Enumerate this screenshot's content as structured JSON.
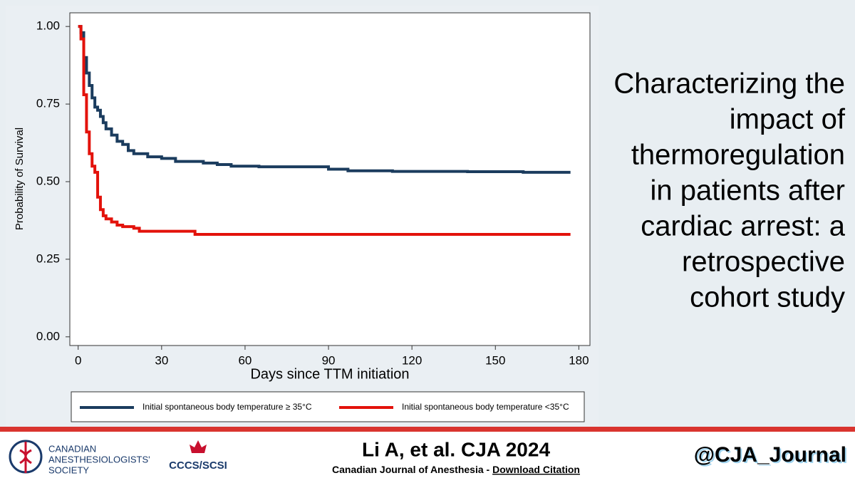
{
  "chart_data": {
    "type": "step",
    "x_label": "Days since TTM initiation",
    "y_label": "Probability of Survival",
    "xlim": [
      -3,
      184
    ],
    "ylim": [
      -0.028,
      1.044
    ],
    "xticks": [
      0,
      30,
      60,
      90,
      120,
      150,
      180
    ],
    "yticks": [
      {
        "value": 0,
        "label": "0.00"
      },
      0.25,
      {
        "value": 0.5,
        "label": "0.50"
      },
      0.75,
      {
        "value": 1,
        "label": "1.00"
      }
    ],
    "series": [
      {
        "name": "Initial spontaneous body temperature ≥ 35°C",
        "color": "#1b3c5e",
        "x": [
          0,
          1,
          2,
          3,
          4,
          5,
          6,
          7,
          8,
          9,
          10,
          12,
          14,
          16,
          18,
          20,
          25,
          30,
          35,
          45,
          50,
          55,
          65,
          90,
          97,
          113,
          140,
          160,
          177
        ],
        "values": [
          1,
          0.98,
          0.9,
          0.85,
          0.81,
          0.77,
          0.74,
          0.73,
          0.71,
          0.69,
          0.67,
          0.65,
          0.63,
          0.62,
          0.6,
          0.59,
          0.58,
          0.575,
          0.565,
          0.56,
          0.555,
          0.55,
          0.548,
          0.54,
          0.535,
          0.533,
          0.532,
          0.53,
          0.53
        ]
      },
      {
        "name": "Initial spontaneous body temperature <35°C",
        "color": "#e3120b",
        "x": [
          0,
          1,
          2,
          3,
          4,
          5,
          6,
          7,
          8,
          9,
          10,
          12,
          14,
          16,
          20,
          22,
          35,
          42,
          177
        ],
        "values": [
          1,
          0.96,
          0.78,
          0.66,
          0.59,
          0.55,
          0.53,
          0.45,
          0.41,
          0.39,
          0.38,
          0.37,
          0.36,
          0.355,
          0.35,
          0.34,
          0.34,
          0.33,
          0.33
        ]
      }
    ]
  },
  "headline": {
    "lines": [
      "Characterizing the",
      "impact of",
      "thermoregulation",
      "in patients after",
      "cardiac arrest: a",
      "retrospective",
      "cohort study"
    ]
  },
  "footer": {
    "society": {
      "lines": [
        "CANADIAN",
        "ANESTHESIOLOGISTS'",
        "SOCIETY"
      ]
    },
    "cccs": "CCCS/SCSI",
    "citation": "Li A, et al. CJA 2024",
    "journal": "Canadian Journal of Anesthesia - ",
    "download": "Download Citation",
    "handle": "@CJA_Journal"
  }
}
